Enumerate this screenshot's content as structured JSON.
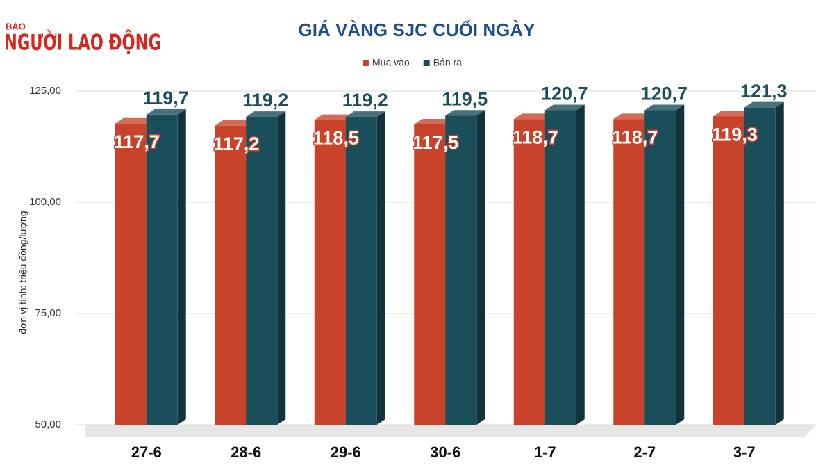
{
  "logo": {
    "small": "BÁO",
    "main": "NGƯỜI LAO ĐỘNG"
  },
  "chart_data": {
    "type": "bar3d",
    "title": "GIÁ VÀNG SJC CUỐI NGÀY",
    "y_label": "đơn vị tính: triệu đồng/lượng",
    "categories": [
      "27-6",
      "28-6",
      "29-6",
      "30-6",
      "1-7",
      "2-7",
      "3-7"
    ],
    "series": [
      {
        "name": "Mua vào",
        "color": "#c9432a",
        "values": [
          117.7,
          117.2,
          118.5,
          117.5,
          118.7,
          118.7,
          119.3
        ],
        "value_labels": [
          "117,7",
          "117,2",
          "118,5",
          "117,5",
          "118,7",
          "118,7",
          "119,3"
        ]
      },
      {
        "name": "Bán ra",
        "color": "#1b4e5b",
        "values": [
          119.7,
          119.2,
          119.2,
          119.5,
          120.7,
          120.7,
          121.3
        ],
        "value_labels": [
          "119,7",
          "119,2",
          "119,2",
          "119,5",
          "120,7",
          "120,7",
          "121,3"
        ]
      }
    ],
    "ylim": [
      50,
      125
    ],
    "yticks": [
      {
        "value": 50,
        "label": "50,00"
      },
      {
        "value": 75,
        "label": "75,00"
      },
      {
        "value": 100,
        "label": "100,00"
      },
      {
        "value": 125,
        "label": "125,00"
      }
    ],
    "grid": true
  }
}
